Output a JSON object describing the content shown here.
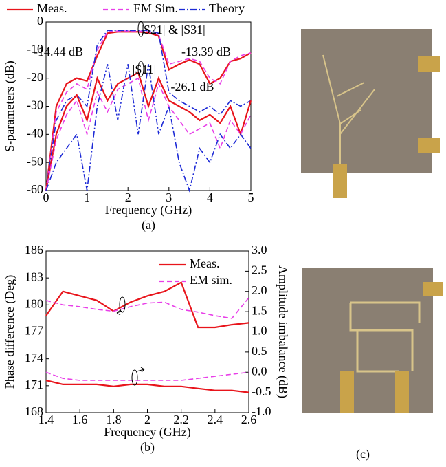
{
  "chart_data": [
    {
      "type": "line",
      "ylabel": "S-parameters (dB)",
      "xlabel": "Frequency (GHz)",
      "caption": "(a)",
      "legend": "top",
      "x": [
        0,
        0.25,
        0.5,
        0.75,
        1,
        1.25,
        1.5,
        1.75,
        2,
        2.25,
        2.5,
        2.75,
        3,
        3.25,
        3.5,
        3.75,
        4,
        4.25,
        4.5,
        4.75,
        5
      ],
      "xlim": [
        0,
        5
      ],
      "xticks": [
        0,
        1,
        2,
        3,
        4,
        5
      ],
      "ylim": [
        -60,
        0
      ],
      "yticks": [
        -60,
        -50,
        -40,
        -30,
        -20,
        -10,
        0
      ],
      "annotations": [
        "-14.44 dB",
        "-13.39 dB",
        "-26.1 dB",
        "|S21| & |S31|",
        "|S11|"
      ],
      "series": [
        {
          "name": "Meas.",
          "color": "#e8141b",
          "style": "solid",
          "values": [
            -60,
            -30,
            -22,
            -20,
            -21,
            -12,
            -4,
            -3.5,
            -3.5,
            -3.5,
            -3.8,
            -5,
            -17,
            -15,
            -13.5,
            -15,
            -22,
            -20,
            -14,
            -13,
            -11
          ]
        },
        {
          "name": "EM Sim.",
          "color": "#e83ee8",
          "style": "dashed",
          "values": [
            -60,
            -32,
            -25,
            -22,
            -24,
            -10,
            -3.5,
            -3.2,
            -3.2,
            -3.2,
            -3.5,
            -4.5,
            -15,
            -14,
            -13,
            -14,
            -20,
            -22,
            -14,
            -12,
            -11
          ]
        },
        {
          "name": "Theory",
          "color": "#1e2bd6",
          "style": "dashdot",
          "values": [
            -60,
            -35,
            -28,
            -26,
            -30,
            -8,
            -3,
            -3,
            -3,
            -3,
            -3,
            -4,
            -25,
            -28,
            -30,
            -32,
            -30,
            -33,
            -28,
            -30,
            -28
          ]
        },
        {
          "color": "#e8141b",
          "style": "solid",
          "values": [
            -60,
            -40,
            -30,
            -26,
            -35,
            -20,
            -28,
            -22,
            -20,
            -18,
            -30,
            -20,
            -28,
            -30,
            -32,
            -35,
            -33,
            -36,
            -30,
            -40,
            -28
          ]
        },
        {
          "color": "#e83ee8",
          "style": "dashed",
          "values": [
            -60,
            -42,
            -33,
            -28,
            -40,
            -25,
            -32,
            -24,
            -22,
            -20,
            -35,
            -22,
            -30,
            -35,
            -40,
            -38,
            -36,
            -45,
            -35,
            -40,
            -33
          ]
        },
        {
          "color": "#1e2bd6",
          "style": "dashdot",
          "values": [
            -60,
            -50,
            -45,
            -40,
            -60,
            -30,
            -15,
            -35,
            -15,
            -40,
            -15,
            -40,
            -30,
            -50,
            -60,
            -45,
            -50,
            -40,
            -45,
            -40,
            -45
          ]
        }
      ]
    },
    {
      "type": "line",
      "ylabel": "Phase difference (Deg)",
      "y2label": "Amplitude imbalance (dB)",
      "xlabel": "Frequency (GHz)",
      "caption": "(b)",
      "legend": "upper right",
      "x": [
        1.4,
        1.5,
        1.6,
        1.7,
        1.8,
        1.9,
        2.0,
        2.1,
        2.2,
        2.3,
        2.4,
        2.5,
        2.6
      ],
      "xlim": [
        1.4,
        2.6
      ],
      "xticks": [
        1.4,
        1.6,
        1.8,
        2.0,
        2.2,
        2.4,
        2.6
      ],
      "ylim": [
        168,
        186
      ],
      "yticks": [
        168,
        171,
        174,
        177,
        180,
        183,
        186
      ],
      "y2lim": [
        -1,
        3
      ],
      "y2ticks": [
        {
          "value": -1,
          "label": "-1.0"
        },
        {
          "value": -0.5,
          "label": "-0.5"
        },
        {
          "value": 0,
          "label": "0.0"
        },
        {
          "value": 0.5,
          "label": "0.5"
        },
        {
          "value": 1,
          "label": "1.0"
        },
        {
          "value": 1.5,
          "label": "1.5"
        },
        {
          "value": 2,
          "label": "2.0"
        },
        {
          "value": 2.5,
          "label": "2.5"
        },
        {
          "value": 3,
          "label": "3.0"
        }
      ],
      "series": [
        {
          "name": "Meas.",
          "color": "#e8141b",
          "style": "solid",
          "values": [
            178.8,
            181.5,
            181,
            180.5,
            179.3,
            180.3,
            181,
            181.5,
            182.5,
            177.5,
            177.5,
            177.8,
            178
          ]
        },
        {
          "name": "EM sim.",
          "color": "#e83ee8",
          "style": "dashed",
          "values": [
            180.5,
            180,
            179.8,
            179.5,
            179.3,
            179.8,
            180.2,
            180.3,
            179.5,
            179.2,
            178.8,
            178.5,
            180.8
          ]
        },
        {
          "color": "#e8141b",
          "style": "solid",
          "axis": "y2",
          "values": [
            -0.2,
            -0.3,
            -0.3,
            -0.3,
            -0.35,
            -0.3,
            -0.3,
            -0.35,
            -0.35,
            -0.4,
            -0.45,
            -0.45,
            -0.5
          ]
        },
        {
          "color": "#e83ee8",
          "style": "dashed",
          "axis": "y2",
          "values": [
            0,
            -0.15,
            -0.2,
            -0.2,
            -0.2,
            -0.2,
            -0.2,
            -0.2,
            -0.2,
            -0.15,
            -0.1,
            -0.05,
            0
          ]
        }
      ]
    }
  ],
  "photo_caption": "(c)"
}
